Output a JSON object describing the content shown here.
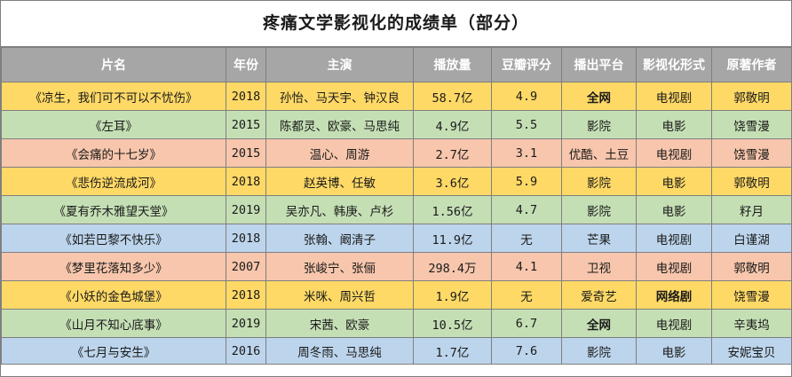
{
  "title": "疼痛文学影视化的成绩单（部分）",
  "colors": {
    "header_bg": "#a6a6a6",
    "header_text": "#ffffff",
    "yellow": "#ffd966",
    "green": "#c5dfb5",
    "orange": "#f7c6ac",
    "blue": "#bdd5ec"
  },
  "columns": [
    "片名",
    "年份",
    "主演",
    "播放量",
    "豆瓣评分",
    "播出平台",
    "影视化形式",
    "原著作者"
  ],
  "rows": [
    {
      "title": "《凉生，我们可不可以不忧伤》",
      "year": "2018",
      "cast": "孙怡、马天宇、钟汉良",
      "views": "58.7亿",
      "score": "4.9",
      "platform": "全网",
      "form": "电视剧",
      "author": "郭敬明",
      "color": "yellow"
    },
    {
      "title": "《左耳》",
      "year": "2015",
      "cast": "陈都灵、欧豪、马思纯",
      "views": "4.9亿",
      "score": "5.5",
      "platform": "影院",
      "form": "电影",
      "author": "饶雪漫",
      "color": "green"
    },
    {
      "title": "《会痛的十七岁》",
      "year": "2015",
      "cast": "温心、周游",
      "views": "2.7亿",
      "score": "3.1",
      "platform": "优酷、土豆",
      "form": "电视剧",
      "author": "饶雪漫",
      "color": "orange"
    },
    {
      "title": "《悲伤逆流成河》",
      "year": "2018",
      "cast": "赵英博、任敏",
      "views": "3.6亿",
      "score": "5.9",
      "platform": "影院",
      "form": "电影",
      "author": "郭敬明",
      "color": "yellow"
    },
    {
      "title": "《夏有乔木雅望天堂》",
      "year": "2019",
      "cast": "吴亦凡、韩庚、卢杉",
      "views": "1.56亿",
      "score": "4.7",
      "platform": "影院",
      "form": "电影",
      "author": "籽月",
      "color": "green"
    },
    {
      "title": "《如若巴黎不快乐》",
      "year": "2018",
      "cast": "张翰、阚清子",
      "views": "11.9亿",
      "score": "无",
      "platform": "芒果",
      "form": "电视剧",
      "author": "白谨湖",
      "color": "blue"
    },
    {
      "title": "《梦里花落知多少》",
      "year": "2007",
      "cast": "张峻宁、张俪",
      "views": "298.4万",
      "score": "4.1",
      "platform": "卫视",
      "form": "电视剧",
      "author": "郭敬明",
      "color": "orange"
    },
    {
      "title": "《小妖的金色城堡》",
      "year": "2018",
      "cast": "米咪、周兴哲",
      "views": "1.9亿",
      "score": "无",
      "platform": "爱奇艺",
      "form": "网络剧",
      "author": "饶雪漫",
      "color": "yellow"
    },
    {
      "title": "《山月不知心底事》",
      "year": "2019",
      "cast": "宋茜、欧豪",
      "views": "10.5亿",
      "score": "6.7",
      "platform": "全网",
      "form": "电视剧",
      "author": "辛夷坞",
      "color": "green"
    },
    {
      "title": "《七月与安生》",
      "year": "2016",
      "cast": "周冬雨、马思纯",
      "views": "1.7亿",
      "score": "7.6",
      "platform": "影院",
      "form": "电影",
      "author": "安妮宝贝",
      "color": "blue"
    }
  ]
}
